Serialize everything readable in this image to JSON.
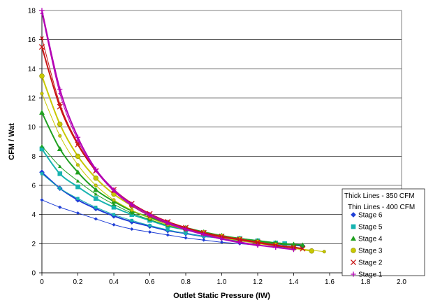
{
  "chart_data": {
    "type": "scatter",
    "title": "",
    "xlabel": "Outlet Static Pressure (IW)",
    "ylabel": "CFM / Wat",
    "xlim": [
      0,
      2.0
    ],
    "ylim": [
      0,
      18
    ],
    "xticks": [
      "0",
      "0.2",
      "0.4",
      "0.6",
      "0.8",
      "1.0",
      "1.2",
      "1.4",
      "1.6",
      "1.8",
      "2.0"
    ],
    "yticks": [
      "0",
      "2",
      "4",
      "6",
      "8",
      "10",
      "12",
      "14",
      "16",
      "18"
    ],
    "grid": "horizontal",
    "legend_position": "right",
    "legend_notes": [
      "Thick Lines - 350 CFM",
      "Thin Lines - 400 CFM"
    ],
    "series": [
      {
        "name": "Stage 6",
        "color": "#1f3fd6",
        "marker": "diamond",
        "thick": [
          [
            0.0,
            6.9
          ],
          [
            0.1,
            5.8
          ],
          [
            0.2,
            5.0
          ],
          [
            0.3,
            4.4
          ],
          [
            0.4,
            3.9
          ],
          [
            0.5,
            3.5
          ],
          [
            0.6,
            3.2
          ],
          [
            0.7,
            2.9
          ],
          [
            0.8,
            2.7
          ],
          [
            0.9,
            2.5
          ],
          [
            1.0,
            2.4
          ],
          [
            1.1,
            2.2
          ],
          [
            1.2,
            2.1
          ],
          [
            1.3,
            2.0
          ],
          [
            1.4,
            1.9
          ],
          [
            1.45,
            1.85
          ]
        ],
        "thin": [
          [
            0.0,
            5.0
          ],
          [
            0.1,
            4.5
          ],
          [
            0.2,
            4.1
          ],
          [
            0.3,
            3.7
          ],
          [
            0.4,
            3.3
          ],
          [
            0.5,
            3.0
          ],
          [
            0.6,
            2.8
          ],
          [
            0.7,
            2.6
          ],
          [
            0.8,
            2.4
          ],
          [
            0.9,
            2.25
          ],
          [
            1.0,
            2.1
          ],
          [
            1.1,
            2.0
          ],
          [
            1.2,
            1.9
          ],
          [
            1.3,
            1.8
          ],
          [
            1.4,
            1.7
          ]
        ]
      },
      {
        "name": "Stage 5",
        "color": "#17b3b0",
        "marker": "square",
        "thick": [
          [
            0.0,
            8.5
          ],
          [
            0.1,
            6.8
          ],
          [
            0.2,
            5.9
          ],
          [
            0.3,
            5.1
          ],
          [
            0.4,
            4.5
          ],
          [
            0.5,
            4.0
          ],
          [
            0.6,
            3.6
          ],
          [
            0.7,
            3.2
          ],
          [
            0.8,
            2.95
          ],
          [
            0.9,
            2.7
          ],
          [
            1.0,
            2.5
          ],
          [
            1.1,
            2.35
          ],
          [
            1.2,
            2.2
          ],
          [
            1.3,
            2.05
          ],
          [
            1.35,
            2.0
          ]
        ],
        "thin": [
          [
            0.0,
            6.8
          ],
          [
            0.1,
            5.8
          ],
          [
            0.2,
            5.1
          ],
          [
            0.3,
            4.5
          ],
          [
            0.4,
            4.0
          ],
          [
            0.5,
            3.6
          ],
          [
            0.6,
            3.25
          ],
          [
            0.7,
            2.95
          ],
          [
            0.8,
            2.7
          ],
          [
            0.9,
            2.5
          ],
          [
            1.0,
            2.35
          ],
          [
            1.1,
            2.2
          ],
          [
            1.2,
            2.05
          ],
          [
            1.3,
            1.95
          ]
        ]
      },
      {
        "name": "Stage 4",
        "color": "#20a020",
        "marker": "triangle",
        "thick": [
          [
            0.0,
            11.0
          ],
          [
            0.1,
            8.5
          ],
          [
            0.2,
            6.9
          ],
          [
            0.3,
            5.7
          ],
          [
            0.4,
            4.9
          ],
          [
            0.5,
            4.25
          ],
          [
            0.6,
            3.8
          ],
          [
            0.7,
            3.4
          ],
          [
            0.8,
            3.1
          ],
          [
            0.9,
            2.8
          ],
          [
            1.0,
            2.55
          ],
          [
            1.1,
            2.35
          ],
          [
            1.2,
            2.2
          ],
          [
            1.3,
            2.05
          ],
          [
            1.4,
            1.95
          ],
          [
            1.45,
            1.9
          ]
        ],
        "thin": [
          [
            0.0,
            8.7
          ],
          [
            0.1,
            7.3
          ],
          [
            0.2,
            6.3
          ],
          [
            0.3,
            5.4
          ],
          [
            0.4,
            4.7
          ],
          [
            0.5,
            4.1
          ],
          [
            0.6,
            3.65
          ],
          [
            0.7,
            3.25
          ],
          [
            0.8,
            2.95
          ],
          [
            0.9,
            2.7
          ],
          [
            1.0,
            2.5
          ],
          [
            1.1,
            2.3
          ],
          [
            1.2,
            2.15
          ],
          [
            1.3,
            2.0
          ],
          [
            1.4,
            1.9
          ]
        ]
      },
      {
        "name": "Stage 3",
        "color": "#c8c800",
        "marker": "circle",
        "thick": [
          [
            0.0,
            13.5
          ],
          [
            0.1,
            10.2
          ],
          [
            0.2,
            8.0
          ],
          [
            0.3,
            6.5
          ],
          [
            0.4,
            5.4
          ],
          [
            0.5,
            4.6
          ],
          [
            0.6,
            3.95
          ],
          [
            0.7,
            3.45
          ],
          [
            0.8,
            3.05
          ],
          [
            0.9,
            2.75
          ],
          [
            1.0,
            2.5
          ],
          [
            1.1,
            2.3
          ],
          [
            1.2,
            2.1
          ],
          [
            1.3,
            1.9
          ],
          [
            1.4,
            1.7
          ],
          [
            1.5,
            1.5
          ]
        ],
        "thin": [
          [
            0.0,
            12.3
          ],
          [
            0.1,
            9.4
          ],
          [
            0.2,
            7.4
          ],
          [
            0.3,
            6.0
          ],
          [
            0.4,
            5.0
          ],
          [
            0.5,
            4.3
          ],
          [
            0.6,
            3.75
          ],
          [
            0.7,
            3.3
          ],
          [
            0.8,
            2.95
          ],
          [
            0.9,
            2.65
          ],
          [
            1.0,
            2.4
          ],
          [
            1.1,
            2.2
          ],
          [
            1.2,
            2.0
          ],
          [
            1.3,
            1.85
          ],
          [
            1.4,
            1.7
          ],
          [
            1.5,
            1.55
          ],
          [
            1.57,
            1.45
          ]
        ]
      },
      {
        "name": "Stage 2",
        "color": "#c81414",
        "marker": "x",
        "thick": [
          [
            0.0,
            15.5
          ],
          [
            0.1,
            11.4
          ],
          [
            0.2,
            8.8
          ],
          [
            0.3,
            7.0
          ],
          [
            0.4,
            5.7
          ],
          [
            0.5,
            4.75
          ],
          [
            0.6,
            4.05
          ],
          [
            0.7,
            3.5
          ],
          [
            0.8,
            3.1
          ],
          [
            0.9,
            2.75
          ],
          [
            1.0,
            2.5
          ],
          [
            1.1,
            2.3
          ],
          [
            1.2,
            2.1
          ],
          [
            1.3,
            1.9
          ],
          [
            1.4,
            1.75
          ],
          [
            1.45,
            1.65
          ]
        ],
        "thin": [
          [
            0.0,
            16.1
          ],
          [
            0.1,
            11.6
          ],
          [
            0.2,
            8.9
          ],
          [
            0.3,
            7.0
          ],
          [
            0.4,
            5.6
          ],
          [
            0.5,
            4.6
          ],
          [
            0.6,
            3.9
          ],
          [
            0.7,
            3.4
          ],
          [
            0.8,
            3.0
          ],
          [
            0.9,
            2.7
          ],
          [
            1.0,
            2.45
          ],
          [
            1.1,
            2.25
          ],
          [
            1.2,
            2.05
          ],
          [
            1.3,
            1.85
          ],
          [
            1.4,
            1.7
          ]
        ]
      },
      {
        "name": "Stage 1",
        "color": "#b400b4",
        "marker": "plus",
        "thick": [
          [
            0.0,
            18.0
          ],
          [
            0.1,
            12.6
          ],
          [
            0.2,
            9.3
          ],
          [
            0.3,
            7.1
          ],
          [
            0.4,
            5.7
          ],
          [
            0.5,
            4.7
          ],
          [
            0.6,
            4.0
          ],
          [
            0.7,
            3.45
          ],
          [
            0.8,
            3.0
          ],
          [
            0.9,
            2.65
          ],
          [
            1.0,
            2.35
          ],
          [
            1.1,
            2.1
          ],
          [
            1.2,
            1.9
          ],
          [
            1.3,
            1.75
          ],
          [
            1.4,
            1.6
          ]
        ],
        "thin": [
          [
            0.0,
            17.8
          ],
          [
            0.1,
            12.3
          ],
          [
            0.2,
            9.1
          ],
          [
            0.3,
            7.0
          ],
          [
            0.4,
            5.6
          ],
          [
            0.5,
            4.6
          ],
          [
            0.6,
            3.9
          ],
          [
            0.7,
            3.35
          ],
          [
            0.8,
            2.95
          ],
          [
            0.9,
            2.6
          ],
          [
            1.0,
            2.3
          ],
          [
            1.1,
            2.05
          ],
          [
            1.2,
            1.85
          ]
        ]
      }
    ]
  }
}
